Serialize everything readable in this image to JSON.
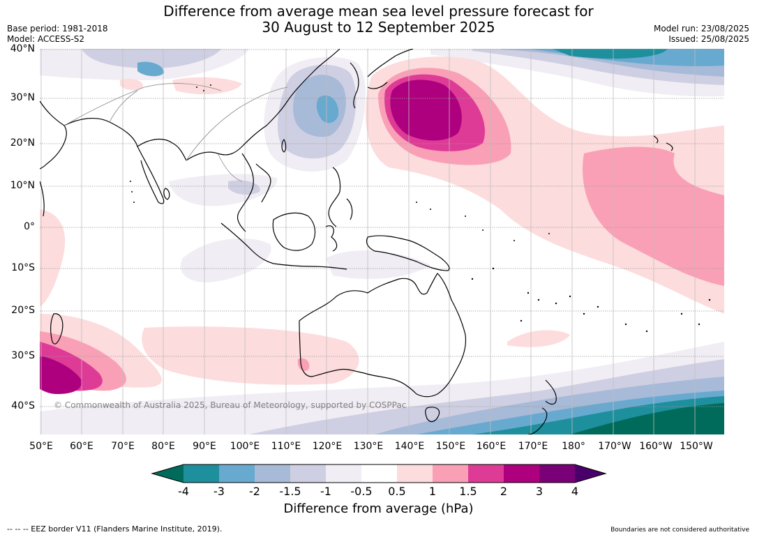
{
  "title": {
    "line1": "Difference from average mean sea level pressure forecast for",
    "line2": "30 August to 12 September 2025"
  },
  "meta_left": {
    "base_period": "Base period: 1981-2018",
    "model": "Model: ACCESS-S2"
  },
  "meta_right": {
    "model_run": "Model run: 23/08/2025",
    "issued": "Issued: 25/08/2025"
  },
  "map": {
    "lat_labels": [
      "40°N",
      "30°N",
      "20°N",
      "10°N",
      "0°",
      "10°S",
      "20°S",
      "30°S",
      "40°S"
    ],
    "lon_labels": [
      "50°E",
      "60°E",
      "70°E",
      "80°E",
      "90°E",
      "100°E",
      "110°E",
      "120°E",
      "130°E",
      "140°E",
      "150°E",
      "160°E",
      "170°E",
      "180°",
      "170°W",
      "160°W",
      "150°W"
    ],
    "copyright": "© Commonwealth of Australia 2025, Bureau of Meteorology, supported by COSPPac"
  },
  "colorbar": {
    "ticks": [
      "-4",
      "-3",
      "-2",
      "-1.5",
      "-1",
      "-0.5",
      "0.5",
      "1",
      "1.5",
      "2",
      "3",
      "4"
    ],
    "colors": {
      "below_min": "#006b5a",
      "b1": "#1e8f9c",
      "b2": "#68a9d0",
      "b3": "#a7bad8",
      "b4": "#cfcfe3",
      "b5": "#f1edf4",
      "b6": "#ffffff",
      "b7": "#fddcdd",
      "b8": "#f9a0b6",
      "b9": "#de3b96",
      "b10": "#ae007e",
      "b11": "#7a0077",
      "above_max": "#4a006a"
    },
    "label": "Difference from average (hPa)"
  },
  "footer": {
    "left": "--  --  -- EEZ border V11 (Flanders Marine Institute, 2019).",
    "right": "Boundaries are not considered authoritative"
  }
}
